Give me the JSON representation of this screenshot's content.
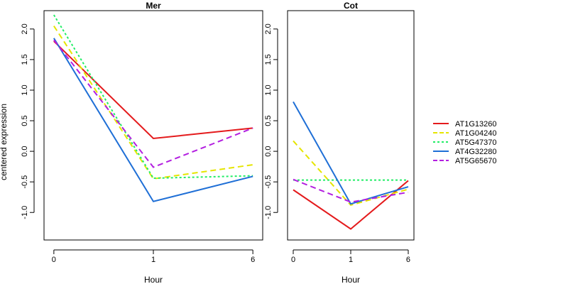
{
  "chart_data": {
    "type": "line",
    "ylabel": "centered expression",
    "xlabel": "Hour",
    "categories": [
      "0",
      "1",
      "6"
    ],
    "ylim": [
      -1.45,
      2.3
    ],
    "yticks": [
      "-1.0",
      "-0.5",
      "0.0",
      "0.5",
      "1.0",
      "1.5",
      "2.0"
    ],
    "ytick_values": [
      -1.0,
      -0.5,
      0.0,
      0.5,
      1.0,
      1.5,
      2.0
    ],
    "legend_position": "right",
    "panels": [
      {
        "title": "Mer",
        "series": [
          {
            "name": "AT1G13260",
            "values": [
              1.8,
              0.21,
              0.38
            ],
            "color": "#e41a1c",
            "dash": "solid"
          },
          {
            "name": "AT1G04240",
            "values": [
              2.05,
              -0.45,
              -0.22
            ],
            "color": "#e5e500",
            "dash": "dashed"
          },
          {
            "name": "AT5G47370",
            "values": [
              2.23,
              -0.44,
              -0.4
            ],
            "color": "#22ee66",
            "dash": "dotted"
          },
          {
            "name": "AT4G32280",
            "values": [
              1.85,
              -0.82,
              -0.41
            ],
            "color": "#1f6fd6",
            "dash": "solid"
          },
          {
            "name": "AT5G65670",
            "values": [
              1.82,
              -0.26,
              0.38
            ],
            "color": "#b31fe0",
            "dash": "dashed"
          }
        ]
      },
      {
        "title": "Cot",
        "series": [
          {
            "name": "AT1G13260",
            "values": [
              -0.63,
              -1.27,
              -0.48
            ],
            "color": "#e41a1c",
            "dash": "solid"
          },
          {
            "name": "AT1G04240",
            "values": [
              0.17,
              -0.88,
              -0.62
            ],
            "color": "#e5e500",
            "dash": "dashed"
          },
          {
            "name": "AT5G47370",
            "values": [
              -0.47,
              -0.47,
              -0.47
            ],
            "color": "#22ee66",
            "dash": "dotted"
          },
          {
            "name": "AT4G32280",
            "values": [
              0.81,
              -0.86,
              -0.58
            ],
            "color": "#1f6fd6",
            "dash": "solid"
          },
          {
            "name": "AT5G65670",
            "values": [
              -0.46,
              -0.83,
              -0.67
            ],
            "color": "#b31fe0",
            "dash": "dashed"
          }
        ]
      }
    ]
  }
}
